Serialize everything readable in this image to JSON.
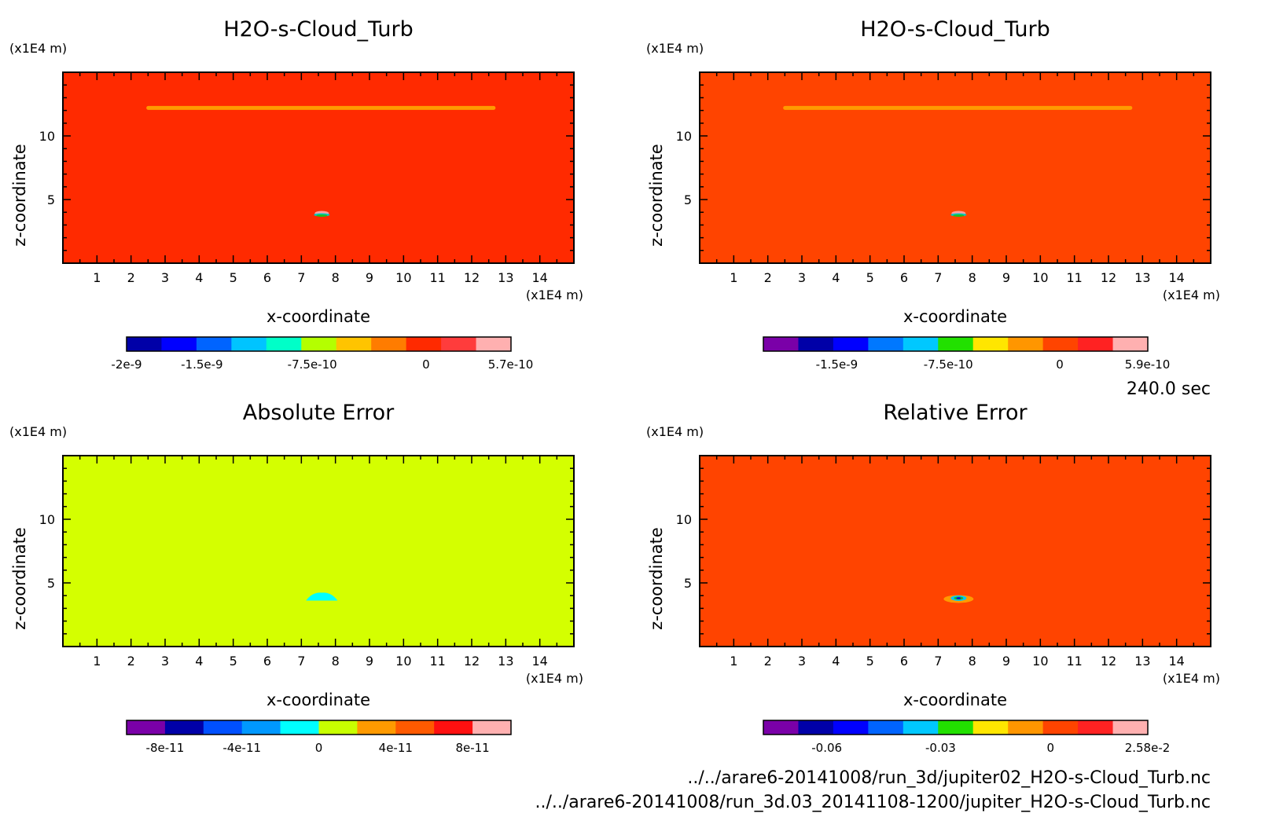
{
  "time_label": "240.0 sec",
  "files": [
    "../../arare6-20141008/run_3d/jupiter02_H2O-s-Cloud_Turb.nc",
    "../../arare6-20141008/run_3d.03_20141108-1200/jupiter_H2O-s-Cloud_Turb.nc"
  ],
  "chart_data": [
    {
      "type": "heatmap",
      "title": "H2O-s-Cloud_Turb",
      "xlabel": "x-coordinate",
      "ylabel": "z-coordinate",
      "x_unit": "(x1E4 m)",
      "y_unit": "(x1E4 m)",
      "xlim": [
        0,
        15
      ],
      "ylim": [
        0,
        15
      ],
      "x_ticks": [
        1,
        2,
        3,
        4,
        5,
        6,
        7,
        8,
        9,
        10,
        11,
        12,
        13,
        14
      ],
      "y_ticks": [
        5,
        10
      ],
      "field_color": "#ff2a00",
      "features": [
        {
          "kind": "band",
          "x": [
            2.45,
            12.7
          ],
          "z": 12.2,
          "color": "#ff9a00"
        },
        {
          "kind": "spot",
          "x": 7.6,
          "z": 3.8,
          "colors": [
            "#ffa0a0",
            "#00c8c8",
            "#22bb22"
          ]
        }
      ],
      "colorbar": {
        "colors": [
          "#0000a8",
          "#0000ff",
          "#0064ff",
          "#00c4ff",
          "#00ffc8",
          "#b4ff00",
          "#ffc400",
          "#ff7c00",
          "#ff2a00",
          "#ff3c3c",
          "#ffb0b0"
        ],
        "tick_labels": [
          "-2e-9",
          "-1.5e-9",
          "-7.5e-10",
          "0",
          "5.7e-10"
        ],
        "tick_positions": [
          0.0,
          0.196,
          0.483,
          0.779,
          0.999
        ]
      }
    },
    {
      "type": "heatmap",
      "title": "H2O-s-Cloud_Turb",
      "xlabel": "x-coordinate",
      "ylabel": "z-coordinate",
      "x_unit": "(x1E4 m)",
      "y_unit": "(x1E4 m)",
      "xlim": [
        0,
        15
      ],
      "ylim": [
        0,
        15
      ],
      "x_ticks": [
        1,
        2,
        3,
        4,
        5,
        6,
        7,
        8,
        9,
        10,
        11,
        12,
        13,
        14
      ],
      "y_ticks": [
        5,
        10
      ],
      "field_color": "#ff4400",
      "features": [
        {
          "kind": "band",
          "x": [
            2.45,
            12.7
          ],
          "z": 12.2,
          "color": "#ff9a00"
        },
        {
          "kind": "spot",
          "x": 7.6,
          "z": 3.8,
          "colors": [
            "#ffa0a0",
            "#00c8c8",
            "#22bb22"
          ]
        }
      ],
      "colorbar": {
        "colors": [
          "#7a00a8",
          "#0000a8",
          "#0000ff",
          "#0078ff",
          "#00c8ff",
          "#22e000",
          "#ffe600",
          "#ff9600",
          "#ff4400",
          "#ff2222",
          "#ffb0b0"
        ],
        "tick_labels": [
          "-1.5e-9",
          "-7.5e-10",
          "0",
          "5.9e-10"
        ],
        "tick_positions": [
          0.191,
          0.481,
          0.771,
          0.999
        ]
      }
    },
    {
      "type": "heatmap",
      "title": "Absolute Error",
      "xlabel": "x-coordinate",
      "ylabel": "z-coordinate",
      "x_unit": "(x1E4 m)",
      "y_unit": "(x1E4 m)",
      "xlim": [
        0,
        15
      ],
      "ylim": [
        0,
        15
      ],
      "x_ticks": [
        1,
        2,
        3,
        4,
        5,
        6,
        7,
        8,
        9,
        10,
        11,
        12,
        13,
        14
      ],
      "y_ticks": [
        5,
        10
      ],
      "field_color": "#d4ff00",
      "features": [
        {
          "kind": "blob",
          "x": 7.6,
          "z": 3.8,
          "color": "#00ffff"
        }
      ],
      "colorbar": {
        "colors": [
          "#7a00a8",
          "#0000a8",
          "#0050ff",
          "#0098ff",
          "#00ffff",
          "#c8ff00",
          "#ff9a00",
          "#ff5a00",
          "#ff1010",
          "#ffb0b0"
        ],
        "tick_labels": [
          "-8e-11",
          "-4e-11",
          "0",
          "4e-11",
          "8e-11"
        ],
        "tick_positions": [
          0.1,
          0.3,
          0.5,
          0.7,
          0.9
        ]
      }
    },
    {
      "type": "heatmap",
      "title": "Relative Error",
      "xlabel": "x-coordinate",
      "ylabel": "z-coordinate",
      "x_unit": "(x1E4 m)",
      "y_unit": "(x1E4 m)",
      "xlim": [
        0,
        15
      ],
      "ylim": [
        0,
        15
      ],
      "x_ticks": [
        1,
        2,
        3,
        4,
        5,
        6,
        7,
        8,
        9,
        10,
        11,
        12,
        13,
        14
      ],
      "y_ticks": [
        5,
        10
      ],
      "field_color": "#ff4400",
      "features": [
        {
          "kind": "ring",
          "x": 7.6,
          "z": 3.8,
          "colors": [
            "#ff9a00",
            "#00c8ff",
            "#22bb22",
            "#0000ff"
          ]
        }
      ],
      "colorbar": {
        "colors": [
          "#7a00a8",
          "#0000a8",
          "#0000ff",
          "#0064ff",
          "#00c8ff",
          "#22e000",
          "#ffe600",
          "#ff9600",
          "#ff4400",
          "#ff2222",
          "#ffb0b0"
        ],
        "tick_labels": [
          "-0.06",
          "-0.03",
          "0",
          "2.58e-2"
        ],
        "tick_positions": [
          0.165,
          0.461,
          0.747,
          0.999
        ]
      }
    }
  ]
}
